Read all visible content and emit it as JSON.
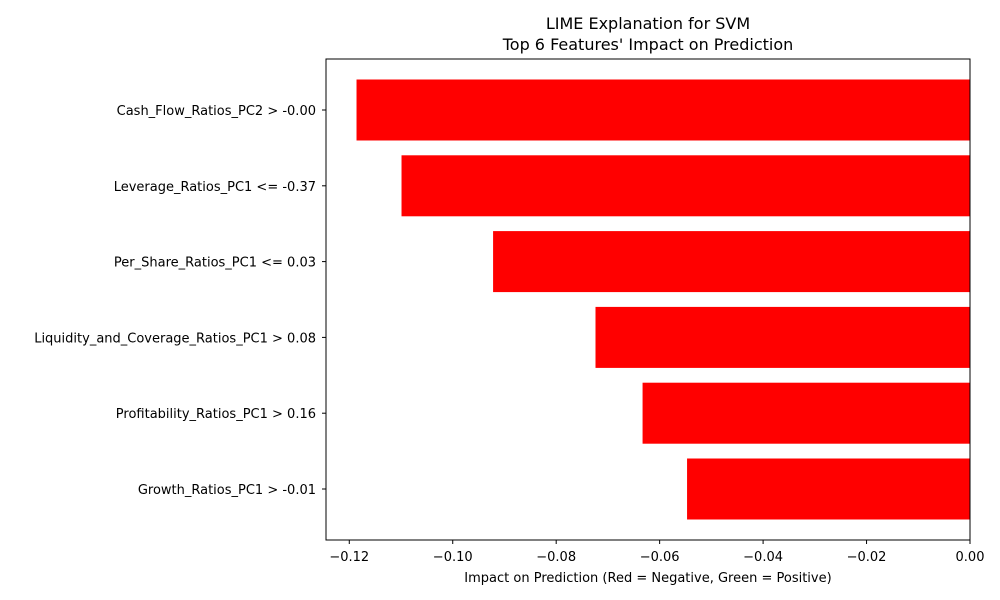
{
  "chart_data": {
    "type": "bar",
    "orientation": "horizontal",
    "title": "LIME Explanation for SVM",
    "subtitle": "Top 6 Features' Impact on Prediction",
    "xlabel": "Impact on Prediction (Red = Negative, Green = Positive)",
    "ylabel": "",
    "categories": [
      "Cash_Flow_Ratios_PC2 > -0.00",
      "Leverage_Ratios_PC1 <= -0.37",
      "Per_Share_Ratios_PC1 <= 0.03",
      "Liquidity_and_Coverage_Ratios_PC1 > 0.08",
      "Profitability_Ratios_PC1 > 0.16",
      "Growth_Ratios_PC1 > -0.01"
    ],
    "values": [
      -0.1186,
      -0.1099,
      -0.0922,
      -0.0724,
      -0.0633,
      -0.0547
    ],
    "xlim": [
      -0.1245,
      0.0
    ],
    "xticks": [
      -0.12,
      -0.1,
      -0.08,
      -0.06,
      -0.04,
      -0.02,
      0.0
    ],
    "xtick_labels": [
      "−0.12",
      "−0.10",
      "−0.08",
      "−0.06",
      "−0.04",
      "−0.02",
      "0.00"
    ],
    "grid": false,
    "legend": "none",
    "colors": {
      "negative": "#ff0000",
      "positive": "#008000"
    }
  }
}
